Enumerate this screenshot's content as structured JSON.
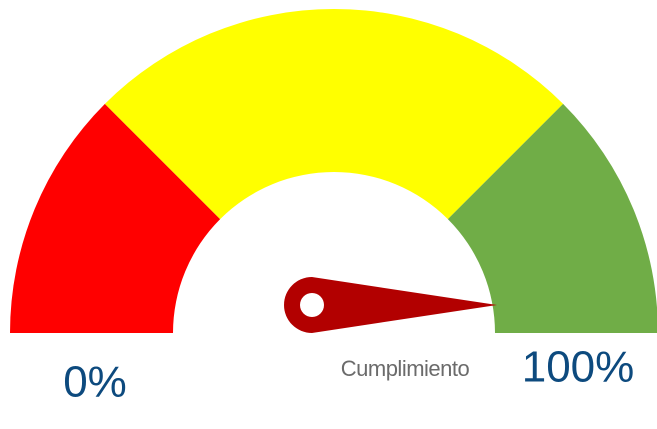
{
  "chart_data": {
    "type": "gauge",
    "value": 100,
    "label": "Cumplimiento",
    "range": [
      0,
      100
    ],
    "ticks": [
      {
        "value": 0,
        "label": "0%"
      },
      {
        "value": 100,
        "label": "100%"
      }
    ],
    "bands": [
      {
        "from": 0,
        "to": 25,
        "color": "#ff0000"
      },
      {
        "from": 25,
        "to": 75,
        "color": "#ffff00"
      },
      {
        "from": 75,
        "to": 100,
        "color": "#70ad47"
      }
    ],
    "needle_color": "#b20000"
  }
}
